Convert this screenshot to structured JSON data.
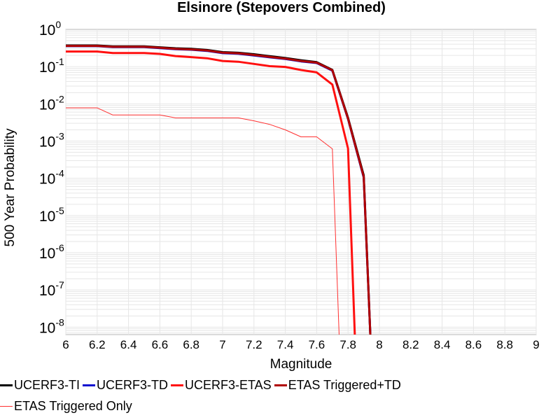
{
  "chart_data": {
    "type": "line",
    "title": "Elsinore (Stepovers Combined)",
    "xlabel": "Magnitude",
    "ylabel": "500 Year Probability",
    "xlim": [
      6,
      9
    ],
    "ylim_log10": [
      -8.2,
      0
    ],
    "y_scale": "log",
    "grid": true,
    "legend_position": "bottom",
    "x_ticks": [
      "6",
      "6.2",
      "6.4",
      "6.6",
      "6.8",
      "7",
      "7.2",
      "7.4",
      "7.6",
      "7.8",
      "8",
      "8.2",
      "8.4",
      "8.6",
      "8.8",
      "9"
    ],
    "y_ticks": [
      {
        "base": "10",
        "exp": "0"
      },
      {
        "base": "10",
        "exp": "-1"
      },
      {
        "base": "10",
        "exp": "-2"
      },
      {
        "base": "10",
        "exp": "-3"
      },
      {
        "base": "10",
        "exp": "-4"
      },
      {
        "base": "10",
        "exp": "-5"
      },
      {
        "base": "10",
        "exp": "-6"
      },
      {
        "base": "10",
        "exp": "-7"
      },
      {
        "base": "10",
        "exp": "-8"
      }
    ],
    "series": [
      {
        "name": "UCERF3-TI",
        "color": "#000000",
        "width": 3,
        "x": [
          6.0,
          6.1,
          6.2,
          6.3,
          6.4,
          6.5,
          6.6,
          6.7,
          6.8,
          6.9,
          7.0,
          7.1,
          7.2,
          7.3,
          7.4,
          7.5,
          7.6,
          7.7,
          7.8,
          7.9,
          7.95
        ],
        "y": [
          0.37,
          0.37,
          0.37,
          0.35,
          0.35,
          0.35,
          0.33,
          0.31,
          0.3,
          0.28,
          0.245,
          0.235,
          0.215,
          0.19,
          0.17,
          0.148,
          0.132,
          0.082,
          0.0042,
          0.00012,
          1e-09
        ]
      },
      {
        "name": "UCERF3-TD",
        "color": "#1010d0",
        "width": 3,
        "x": [
          6.0,
          6.1,
          6.2,
          6.3,
          6.4,
          6.5,
          6.6,
          6.7,
          6.8,
          6.9,
          7.0,
          7.1,
          7.2,
          7.3,
          7.4,
          7.5,
          7.6,
          7.7,
          7.8,
          7.9,
          7.95
        ],
        "y": [
          0.355,
          0.355,
          0.355,
          0.335,
          0.335,
          0.335,
          0.315,
          0.295,
          0.285,
          0.265,
          0.23,
          0.222,
          0.2,
          0.178,
          0.16,
          0.138,
          0.125,
          0.078,
          0.0039,
          0.000105,
          1e-09
        ]
      },
      {
        "name": "UCERF3-ETAS",
        "color": "#ff1010",
        "width": 3,
        "x": [
          6.0,
          6.1,
          6.2,
          6.3,
          6.4,
          6.5,
          6.6,
          6.7,
          6.8,
          6.9,
          7.0,
          7.1,
          7.2,
          7.3,
          7.4,
          7.5,
          7.6,
          7.7,
          7.8,
          7.85
        ],
        "y": [
          0.255,
          0.255,
          0.255,
          0.232,
          0.232,
          0.232,
          0.22,
          0.192,
          0.18,
          0.168,
          0.142,
          0.135,
          0.118,
          0.103,
          0.098,
          0.081,
          0.07,
          0.033,
          0.00063,
          1e-09
        ]
      },
      {
        "name": "ETAS Triggered+TD",
        "color": "#b00000",
        "width": 3,
        "x": [
          6.0,
          6.1,
          6.2,
          6.3,
          6.4,
          6.5,
          6.6,
          6.7,
          6.8,
          6.9,
          7.0,
          7.1,
          7.2,
          7.3,
          7.4,
          7.5,
          7.6,
          7.7,
          7.8,
          7.9,
          7.95
        ],
        "y": [
          0.36,
          0.36,
          0.36,
          0.34,
          0.34,
          0.34,
          0.32,
          0.3,
          0.29,
          0.272,
          0.236,
          0.228,
          0.206,
          0.183,
          0.164,
          0.142,
          0.128,
          0.08,
          0.004,
          0.00011,
          1e-09
        ]
      },
      {
        "name": "ETAS Triggered Only",
        "color": "#ff3030",
        "width": 1,
        "x": [
          6.0,
          6.1,
          6.2,
          6.3,
          6.4,
          6.5,
          6.6,
          6.7,
          6.8,
          6.9,
          7.0,
          7.1,
          7.2,
          7.3,
          7.4,
          7.5,
          7.6,
          7.7,
          7.75
        ],
        "y": [
          0.0078,
          0.0078,
          0.0078,
          0.005,
          0.005,
          0.005,
          0.005,
          0.0042,
          0.0042,
          0.0042,
          0.0042,
          0.0042,
          0.0035,
          0.0028,
          0.002,
          0.0013,
          0.0013,
          0.00062,
          1e-09
        ]
      }
    ]
  }
}
